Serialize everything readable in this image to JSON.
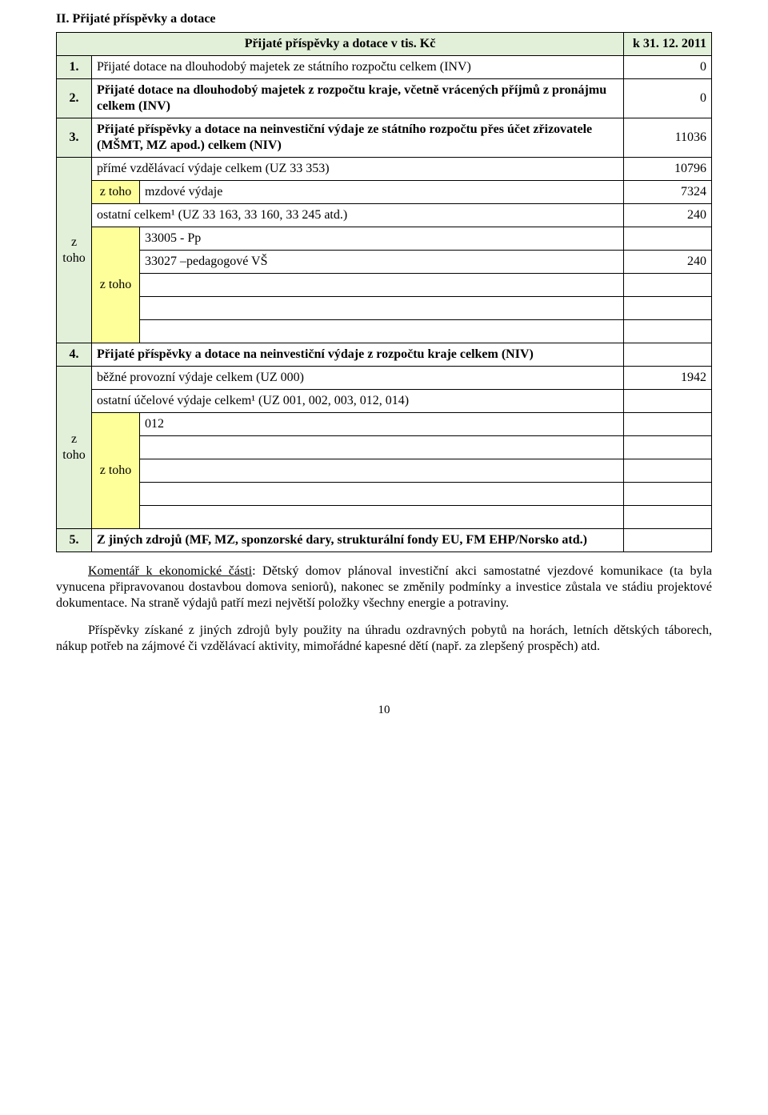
{
  "colors": {
    "green": "#e2efd9",
    "yellow": "#ffff99",
    "border": "#000000",
    "text": "#000000",
    "background": "#ffffff"
  },
  "heading": "II. Přijaté příspěvky a dotace",
  "table": {
    "title": "Přijaté příspěvky a dotace v tis. Kč",
    "date": "k 31. 12. 2011",
    "z_toho": "z toho",
    "row1": {
      "num": "1.",
      "label": "Přijaté dotace na dlouhodobý majetek ze státního rozpočtu celkem (INV)",
      "value": "0"
    },
    "row2": {
      "num": "2.",
      "label": "Přijaté dotace na dlouhodobý majetek z rozpočtu kraje, včetně vrácených příjmů z pronájmu celkem (INV)",
      "value": "0"
    },
    "row3": {
      "num": "3.",
      "label": "Přijaté příspěvky a dotace na neinvestiční výdaje ze státního rozpočtu přes účet zřizovatele (MŠMT, MZ apod.) celkem (NIV)",
      "value": "11036"
    },
    "row3a": {
      "label": "přímé vzdělávací výdaje celkem (UZ 33 353)",
      "value": "10796"
    },
    "row3a1": {
      "label": "mzdové výdaje",
      "value": "7324"
    },
    "row3b": {
      "label": "ostatní celkem¹ (UZ 33 163, 33 160, 33 245 atd.)",
      "value": "240"
    },
    "row3b1": {
      "label": "33005 - Pp",
      "value": ""
    },
    "row3b2": {
      "label": "33027 –pedagogové VŠ",
      "value": "240"
    },
    "row4": {
      "num": "4.",
      "label": "Přijaté příspěvky a dotace na neinvestiční výdaje z rozpočtu kraje celkem (NIV)",
      "value": ""
    },
    "row4a": {
      "label": "běžné provozní výdaje celkem (UZ 000)",
      "value": "1942"
    },
    "row4b": {
      "label": "ostatní účelové výdaje celkem¹ (UZ 001, 002, 003, 012, 014)",
      "value": ""
    },
    "row4b1": {
      "label": "012",
      "value": ""
    },
    "row5": {
      "num": "5.",
      "label": "Z jiných zdrojů (MF, MZ, sponzorské dary, strukturální fondy EU, FM EHP/Norsko atd.)",
      "value": ""
    }
  },
  "para1": "Komentář k ekonomické části: Dětský domov plánoval investiční akci samostatné vjezdové komunikace (ta byla vynucena připravovanou dostavbou domova seniorů), nakonec se změnily podmínky a investice zůstala ve stádiu projektové dokumentace. Na straně výdajů patří mezi největší položky všechny energie a potraviny.",
  "para2": "Příspěvky získané z jiných zdrojů byly použity na úhradu ozdravných pobytů na horách, letních dětských táborech, nákup potřeb na zájmové či vzdělávací aktivity, mimořádné kapesné dětí (např. za zlepšený prospěch) atd.",
  "page_number": "10"
}
